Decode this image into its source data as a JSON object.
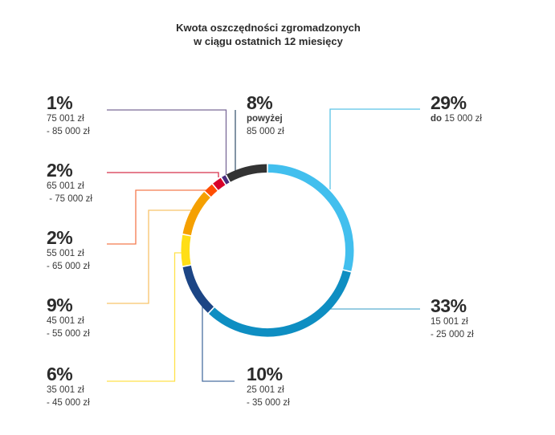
{
  "title": {
    "line1": "Kwota oszczędności zgromadzonych",
    "line2": "w ciągu ostatnich 12 miesięcy"
  },
  "labels": [
    {
      "pct": "29%",
      "line1_bold": "do",
      "line1": " 15 000 zł",
      "line2": ""
    },
    {
      "pct": "33%",
      "line1_bold": "",
      "line1": "15 001 zł",
      "line2": "- 25 000 zł"
    },
    {
      "pct": "10%",
      "line1_bold": "",
      "line1": "25 001 zł",
      "line2": "- 35 000 zł"
    },
    {
      "pct": "6%",
      "line1_bold": "",
      "line1": "35 001 zł",
      "line2": "- 45 000 zł"
    },
    {
      "pct": "9%",
      "line1_bold": "",
      "line1": "45 001 zł",
      "line2": "- 55 000 zł"
    },
    {
      "pct": "2%",
      "line1_bold": "",
      "line1": "55 001 zł",
      "line2": "- 65 000 zł"
    },
    {
      "pct": "2%",
      "line1_bold": "",
      "line1": "65 001 zł",
      "line2": " - 75 000 zł"
    },
    {
      "pct": "1%",
      "line1_bold": "",
      "line1": "75 001 zł",
      "line2": "- 85 000 zł"
    },
    {
      "pct": "8%",
      "line1_bold": "powyżej",
      "line1": "",
      "line2": "85 000 zł"
    }
  ],
  "chart_data": {
    "type": "pie",
    "variant": "donut",
    "title": "Kwota oszczędności zgromadzonych w ciągu ostatnich 12 miesięcy",
    "categories": [
      "do 15 000 zł",
      "15 001 zł - 25 000 zł",
      "25 001 zł - 35 000 zł",
      "35 001 zł - 45 000 zł",
      "45 001 zł - 55 000 zł",
      "55 001 zł - 65 000 zł",
      "65 001 zł - 75 000 zł",
      "75 001 zł - 85 000 zł",
      "powyżej 85 000 zł"
    ],
    "values": [
      29,
      33,
      10,
      6,
      9,
      2,
      2,
      1,
      8
    ],
    "unit": "%",
    "colors": [
      "#42BFEE",
      "#0E8EC2",
      "#1C4585",
      "#FFDE17",
      "#F5A000",
      "#FF4E00",
      "#D8002A",
      "#4A2D7F",
      "#333333"
    ],
    "start_angle": "12 o'clock",
    "direction": "clockwise",
    "legend": "callout labels with connector lines"
  }
}
